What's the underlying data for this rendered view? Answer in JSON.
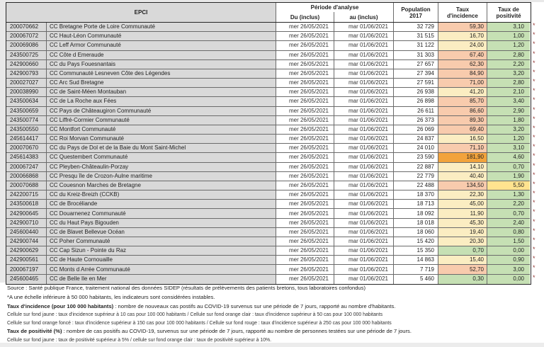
{
  "colors": {
    "header_gray": "#d9d9d9",
    "incidence_yellow": "#fbedc2",
    "incidence_orange_clair": "#f8cbad",
    "incidence_orange_fonce": "#f2a33c",
    "positivity_green": "#c6e0b4",
    "positivity_yellow": "#ffe38f",
    "asterisk_red": "#943634"
  },
  "table": {
    "header": {
      "epci": "EPCI",
      "periode": "Période d'analyse",
      "du": "Du (inclus)",
      "au": "au (inclus)",
      "population_l1": "Population",
      "population_l2": "2017",
      "incidence_l1": "Taux",
      "incidence_l2": "d'incidence",
      "positivite_l1": "Taux de",
      "positivite_l2": "positivité"
    },
    "rows": [
      {
        "code": "200070662",
        "name": "CC Bretagne Porte de Loire Communauté",
        "du": "mer 26/05/2021",
        "au": "mar 01/06/2021",
        "population": "32 729",
        "incidence": "59,30",
        "incidence_level": "orange",
        "positivite": "3,10",
        "positivite_level": "green",
        "flag": "*"
      },
      {
        "code": "200067072",
        "name": "CC Haut-Léon Communauté",
        "du": "mer 26/05/2021",
        "au": "mar 01/06/2021",
        "population": "31 515",
        "incidence": "16,70",
        "incidence_level": "yellow",
        "positivite": "1,00",
        "positivite_level": "green",
        "flag": "*"
      },
      {
        "code": "200069086",
        "name": "CC Leff Armor Communauté",
        "du": "mer 26/05/2021",
        "au": "mar 01/06/2021",
        "population": "31 122",
        "incidence": "24,00",
        "incidence_level": "yellow",
        "positivite": "1,20",
        "positivite_level": "green",
        "flag": "*"
      },
      {
        "code": "243500725",
        "name": "CC Côte d Emeraude",
        "du": "mer 26/05/2021",
        "au": "mar 01/06/2021",
        "population": "31 303",
        "incidence": "67,40",
        "incidence_level": "orange",
        "positivite": "2,80",
        "positivite_level": "green",
        "flag": "*"
      },
      {
        "code": "242900660",
        "name": "CC du Pays Fouesnantais",
        "du": "mer 26/05/2021",
        "au": "mar 01/06/2021",
        "population": "27 657",
        "incidence": "62,30",
        "incidence_level": "orange",
        "positivite": "2,20",
        "positivite_level": "green",
        "flag": "*"
      },
      {
        "code": "242900793",
        "name": "CC Communauté Lesneven Côte des Légendes",
        "du": "mer 26/05/2021",
        "au": "mar 01/06/2021",
        "population": "27 394",
        "incidence": "84,90",
        "incidence_level": "orange",
        "positivite": "3,20",
        "positivite_level": "green",
        "flag": "*"
      },
      {
        "code": "200027027",
        "name": "CC Arc Sud Bretagne",
        "du": "mer 26/05/2021",
        "au": "mar 01/06/2021",
        "population": "27 591",
        "incidence": "71,00",
        "incidence_level": "orange",
        "positivite": "2,80",
        "positivite_level": "green",
        "flag": "*"
      },
      {
        "code": "200038990",
        "name": "CC de Saint-Méen Montauban",
        "du": "mer 26/05/2021",
        "au": "mar 01/06/2021",
        "population": "26 938",
        "incidence": "41,20",
        "incidence_level": "yellow",
        "positivite": "2,10",
        "positivite_level": "green",
        "flag": "*"
      },
      {
        "code": "243500634",
        "name": "CC de La Roche aux Fées",
        "du": "mer 26/05/2021",
        "au": "mar 01/06/2021",
        "population": "26 898",
        "incidence": "85,70",
        "incidence_level": "orange",
        "positivite": "3,40",
        "positivite_level": "green",
        "flag": "*"
      },
      {
        "code": "243500659",
        "name": "CC Pays de Châteaugiron Communauté",
        "du": "mer 26/05/2021",
        "au": "mar 01/06/2021",
        "population": "26 611",
        "incidence": "86,60",
        "incidence_level": "orange",
        "positivite": "2,90",
        "positivite_level": "green",
        "flag": "*"
      },
      {
        "code": "243500774",
        "name": "CC Liffré-Cormier Communauté",
        "du": "mer 26/05/2021",
        "au": "mar 01/06/2021",
        "population": "26 373",
        "incidence": "89,30",
        "incidence_level": "orange",
        "positivite": "1,80",
        "positivite_level": "green",
        "flag": "*"
      },
      {
        "code": "243500550",
        "name": "CC Montfort Communauté",
        "du": "mer 26/05/2021",
        "au": "mar 01/06/2021",
        "population": "26 069",
        "incidence": "69,40",
        "incidence_level": "orange",
        "positivite": "3,20",
        "positivite_level": "green",
        "flag": "*"
      },
      {
        "code": "245614417",
        "name": "CC Roi Morvan Communauté",
        "du": "mer 26/05/2021",
        "au": "mar 01/06/2021",
        "population": "24 837",
        "incidence": "16,50",
        "incidence_level": "yellow",
        "positivite": "1,20",
        "positivite_level": "green",
        "flag": "*"
      },
      {
        "code": "200070670",
        "name": "CC du Pays de Dol et de la Baie du Mont Saint-Michel",
        "du": "mer 26/05/2021",
        "au": "mar 01/06/2021",
        "population": "24 010",
        "incidence": "71,10",
        "incidence_level": "orange",
        "positivite": "3,10",
        "positivite_level": "green",
        "flag": "*"
      },
      {
        "code": "245614383",
        "name": "CC Questembert Communauté",
        "du": "mer 26/05/2021",
        "au": "mar 01/06/2021",
        "population": "23 590",
        "incidence": "181,90",
        "incidence_level": "darkorange",
        "positivite": "4,60",
        "positivite_level": "green",
        "flag": "*"
      },
      {
        "code": "200067247",
        "name": "CC Pleyben-Châteaulin-Porzay",
        "du": "mer 26/05/2021",
        "au": "mar 01/06/2021",
        "population": "22 887",
        "incidence": "14,10",
        "incidence_level": "yellow",
        "positivite": "0,70",
        "positivite_level": "green",
        "flag": "*"
      },
      {
        "code": "200066868",
        "name": "CC Presqu île de Crozon-Aulne maritime",
        "du": "mer 26/05/2021",
        "au": "mar 01/06/2021",
        "population": "22 779",
        "incidence": "40,40",
        "incidence_level": "yellow",
        "positivite": "1,90",
        "positivite_level": "green",
        "flag": "*"
      },
      {
        "code": "200070688",
        "name": "CC Couesnon Marches de Bretagne",
        "du": "mer 26/05/2021",
        "au": "mar 01/06/2021",
        "population": "22 488",
        "incidence": "134,50",
        "incidence_level": "orange",
        "positivite": "5,50",
        "positivite_level": "yellow2",
        "flag": "*"
      },
      {
        "code": "242200715",
        "name": "CC du Kreiz-Breizh (CCKB)",
        "du": "mer 26/05/2021",
        "au": "mar 01/06/2021",
        "population": "18 370",
        "incidence": "22,30",
        "incidence_level": "yellow",
        "positivite": "1,30",
        "positivite_level": "green",
        "flag": "*"
      },
      {
        "code": "243500618",
        "name": "CC de Brocéliande",
        "du": "mer 26/05/2021",
        "au": "mar 01/06/2021",
        "population": "18 713",
        "incidence": "45,00",
        "incidence_level": "yellow",
        "positivite": "2,20",
        "positivite_level": "green",
        "flag": "*"
      },
      {
        "code": "242900645",
        "name": "CC Douarnenez Communauté",
        "du": "mer 26/05/2021",
        "au": "mar 01/06/2021",
        "population": "18 092",
        "incidence": "11,90",
        "incidence_level": "yellow",
        "positivite": "0,70",
        "positivite_level": "green",
        "flag": "*"
      },
      {
        "code": "242900710",
        "name": "CC du Haut Pays Bigouden",
        "du": "mer 26/05/2021",
        "au": "mar 01/06/2021",
        "population": "18 018",
        "incidence": "45,30",
        "incidence_level": "yellow",
        "positivite": "2,40",
        "positivite_level": "green",
        "flag": "*"
      },
      {
        "code": "245600440",
        "name": "CC de Blavet Bellevue Océan",
        "du": "mer 26/05/2021",
        "au": "mar 01/06/2021",
        "population": "18 060",
        "incidence": "19,40",
        "incidence_level": "yellow",
        "positivite": "0,80",
        "positivite_level": "green",
        "flag": "*"
      },
      {
        "code": "242900744",
        "name": "CC Poher Communauté",
        "du": "mer 26/05/2021",
        "au": "mar 01/06/2021",
        "population": "15 420",
        "incidence": "20,30",
        "incidence_level": "yellow",
        "positivite": "1,50",
        "positivite_level": "green",
        "flag": "*"
      },
      {
        "code": "242900629",
        "name": "CC Cap Sizun - Pointe du Raz",
        "du": "mer 26/05/2021",
        "au": "mar 01/06/2021",
        "population": "15 350",
        "incidence": "0,70",
        "incidence_level": "green",
        "positivite": "0,00",
        "positivite_level": "green",
        "flag": "*"
      },
      {
        "code": "242900561",
        "name": "CC de Haute Cornouaille",
        "du": "mer 26/05/2021",
        "au": "mar 01/06/2021",
        "population": "14 863",
        "incidence": "15,40",
        "incidence_level": "yellow",
        "positivite": "0,90",
        "positivite_level": "green",
        "flag": "*"
      },
      {
        "code": "200067197",
        "name": "CC Monts d Arrée Communauté",
        "du": "mer 26/05/2021",
        "au": "mar 01/06/2021",
        "population": "7 719",
        "incidence": "52,70",
        "incidence_level": "orange",
        "positivite": "3,00",
        "positivite_level": "green",
        "flag": "*"
      },
      {
        "code": "245600465",
        "name": "CC de Belle Ile en Mer",
        "du": "mer 26/05/2021",
        "au": "mar 01/06/2021",
        "population": "5 460",
        "incidence": "0,30",
        "incidence_level": "green",
        "positivite": "0,00",
        "positivite_level": "green",
        "flag": "*"
      }
    ]
  },
  "source_line": "Source  : Santé publique France, traitement national des données SIDEP (résultats de prélèvements des patients bretons, tous laboratoires confondus)",
  "footnotes": [
    {
      "lead": "",
      "text": "*A une échelle inférieure à 50 000 habitants, les indicateurs sont considérées instables.",
      "style": "normal"
    },
    {
      "lead": "Taux d'incidence (pour 100 000 habitants)",
      "text": " : nombre de nouveaux cas postifs au COVID-19 survenus sur une période de 7 jours, rapporté au nombre d'habitants.",
      "style": "normal"
    },
    {
      "lead": "",
      "text": "Cellule sur fond jaune :  taux d'incidence supérieur à 10 cas pour 100 000 habitants / Cellule sur fond orange clair : taux d'incidence supérieur à 50 cas pour 100 000 habitants",
      "style": "small"
    },
    {
      "lead": "",
      "text": "Cellule sur fond orange foncé : taux d'incidence supérieur à 150 cas pour 100 000 habitants / Cellule sur fond rouge : taux d'incidence supérieur à 250 cas pour 100 000 habitants",
      "style": "small"
    },
    {
      "lead": "Taux de positivité (%)",
      "text": " : nombre de cas positifs au COVID-19, survenus sur une période de 7 jours, rapporté au nombre de personnes testées sur une période de 7 jours.",
      "style": "normal"
    },
    {
      "lead": "",
      "text": "Cellule sur fond jaune :  taux de positivité supérieur à 5% / cellule sur fond orange clair : taux de positivité supérieur à 10%.",
      "style": "small"
    }
  ]
}
